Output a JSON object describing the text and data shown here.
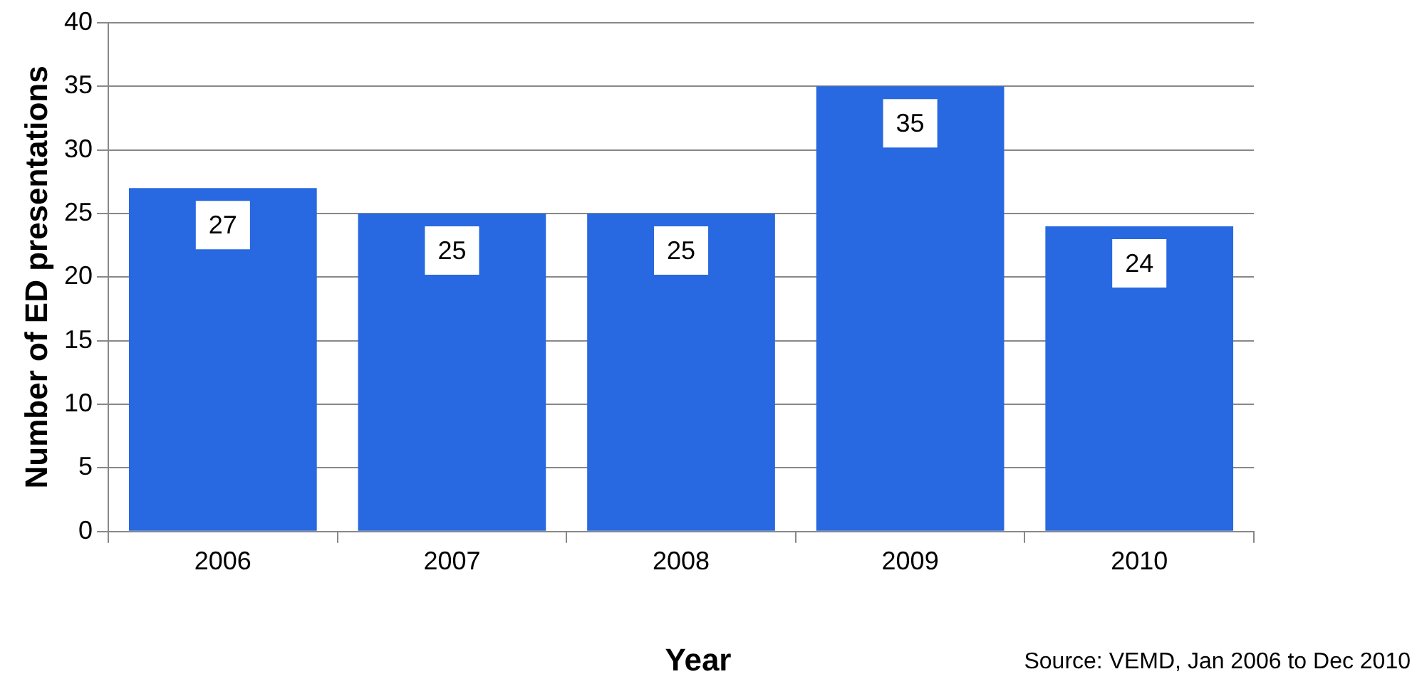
{
  "chart_data": {
    "type": "bar",
    "xlabel": "Year",
    "ylabel": "Number of ED presentations",
    "categories": [
      "2006",
      "2007",
      "2008",
      "2009",
      "2010"
    ],
    "values": [
      27,
      25,
      25,
      35,
      24
    ],
    "color": "#2868e0",
    "ylim": [
      0,
      40
    ],
    "yticks": [
      0,
      5,
      10,
      15,
      20,
      25,
      30,
      35,
      40
    ],
    "grid": "y",
    "legend": false,
    "data_labels": true,
    "annotations": [
      "Source: VEMD, Jan 2006 to Dec 2010"
    ]
  }
}
